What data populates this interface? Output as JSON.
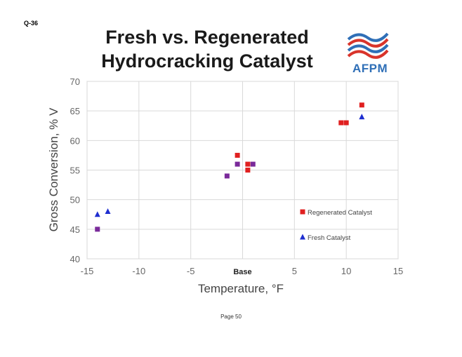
{
  "header": {
    "question_id": "Q-36",
    "title_line1": "Fresh vs. Regenerated",
    "title_line2": "Hydrocracking Catalyst"
  },
  "logo": {
    "text": "AFPM",
    "color_blue": "#2f6fb7",
    "color_red": "#d9342b"
  },
  "footer": {
    "page": "Page 50"
  },
  "chart_data": {
    "type": "scatter",
    "xlabel": "Temperature, °F",
    "ylabel": "Gross Conversion, % V",
    "xlim": [
      -15,
      15
    ],
    "ylim": [
      40,
      70
    ],
    "x_ticks": [
      {
        "value": -15,
        "label": "-15"
      },
      {
        "value": -10,
        "label": "-10"
      },
      {
        "value": -5,
        "label": "-5"
      },
      {
        "value": 0,
        "label": "Base"
      },
      {
        "value": 5,
        "label": "5"
      },
      {
        "value": 10,
        "label": "10"
      },
      {
        "value": 15,
        "label": "15"
      }
    ],
    "y_ticks": [
      {
        "value": 40,
        "label": "40"
      },
      {
        "value": 45,
        "label": "45"
      },
      {
        "value": 50,
        "label": "50"
      },
      {
        "value": 55,
        "label": "55"
      },
      {
        "value": 60,
        "label": "60"
      },
      {
        "value": 65,
        "label": "65"
      },
      {
        "value": 70,
        "label": "70"
      }
    ],
    "grid": true,
    "legend_position": "right",
    "series": [
      {
        "name": "Regenerated Catalyst",
        "marker": "square",
        "color": "#e02020",
        "points": [
          [
            -0.5,
            57.5
          ],
          [
            0.5,
            56
          ],
          [
            0.5,
            55
          ],
          [
            9.5,
            63
          ],
          [
            10,
            63
          ],
          [
            11.5,
            66
          ]
        ]
      },
      {
        "name": "Fresh Catalyst",
        "marker": "triangle",
        "color": "#1f2fd0",
        "points": [
          [
            -14,
            47.5
          ],
          [
            -13,
            48
          ],
          [
            11.5,
            64
          ]
        ]
      },
      {
        "marker": "square",
        "color": "#7a2a9a",
        "points": [
          [
            -14,
            45
          ],
          [
            -1.5,
            54
          ],
          [
            -0.5,
            56
          ],
          [
            1,
            56
          ]
        ]
      }
    ]
  }
}
